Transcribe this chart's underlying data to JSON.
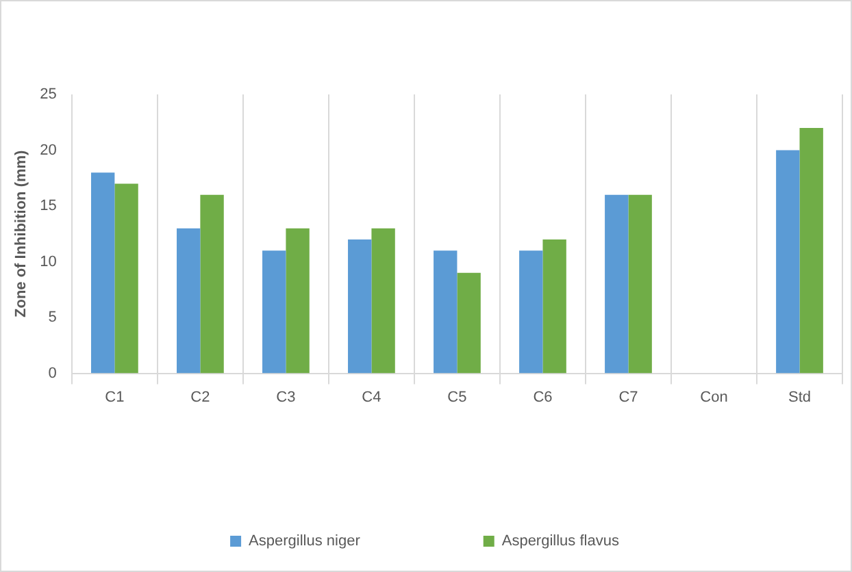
{
  "chart_data": {
    "type": "bar",
    "ylabel": "Zone of Inhibition (mm)",
    "categories": [
      "C1",
      "C2",
      "C3",
      "C4",
      "C5",
      "C6",
      "C7",
      "Con",
      "Std"
    ],
    "series": [
      {
        "name": "Aspergillus niger",
        "color": "#5b9bd5",
        "values": [
          18,
          13,
          11,
          12,
          11,
          11,
          16,
          0,
          20
        ]
      },
      {
        "name": "Aspergillus flavus",
        "color": "#70ad47",
        "values": [
          17,
          16,
          13,
          13,
          9,
          12,
          16,
          0,
          22
        ]
      }
    ],
    "ylim": [
      0,
      25
    ],
    "yticks": [
      0,
      5,
      10,
      15,
      20,
      25
    ],
    "grid": "x",
    "legend": "bottom"
  }
}
